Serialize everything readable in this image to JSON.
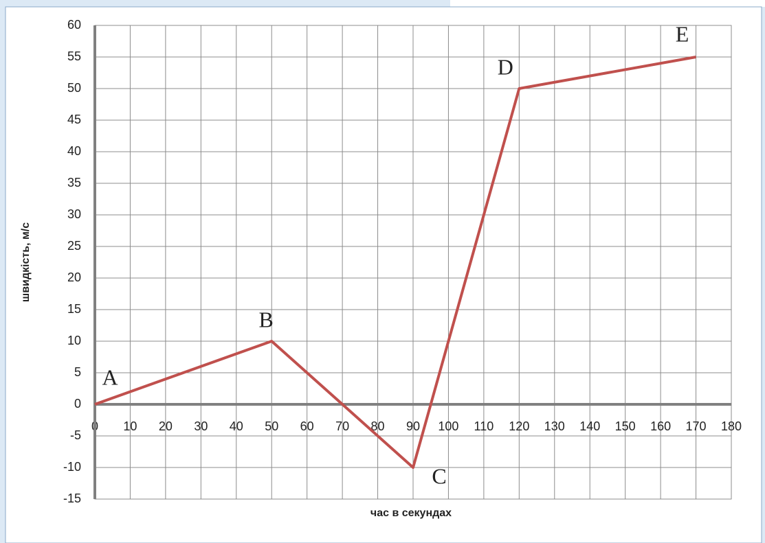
{
  "chart_data": {
    "type": "line",
    "x_label": "час в секундах",
    "y_label": "швидкість, м/с",
    "x": [
      0,
      50,
      90,
      120,
      170
    ],
    "series": [
      {
        "color": "#c0504d",
        "values": [
          0,
          10,
          -10,
          50,
          55
        ]
      }
    ],
    "point_labels": [
      "A",
      "B",
      "C",
      "D",
      "E"
    ],
    "xlim": [
      0,
      180
    ],
    "xticks": [
      0,
      10,
      20,
      30,
      40,
      50,
      60,
      70,
      80,
      90,
      100,
      110,
      120,
      130,
      140,
      150,
      160,
      170,
      180
    ],
    "ylim": [
      -15,
      60
    ],
    "yticks": [
      -15,
      -10,
      -5,
      0,
      5,
      10,
      15,
      20,
      25,
      30,
      35,
      40,
      45,
      50,
      55,
      60
    ],
    "grid": true
  }
}
